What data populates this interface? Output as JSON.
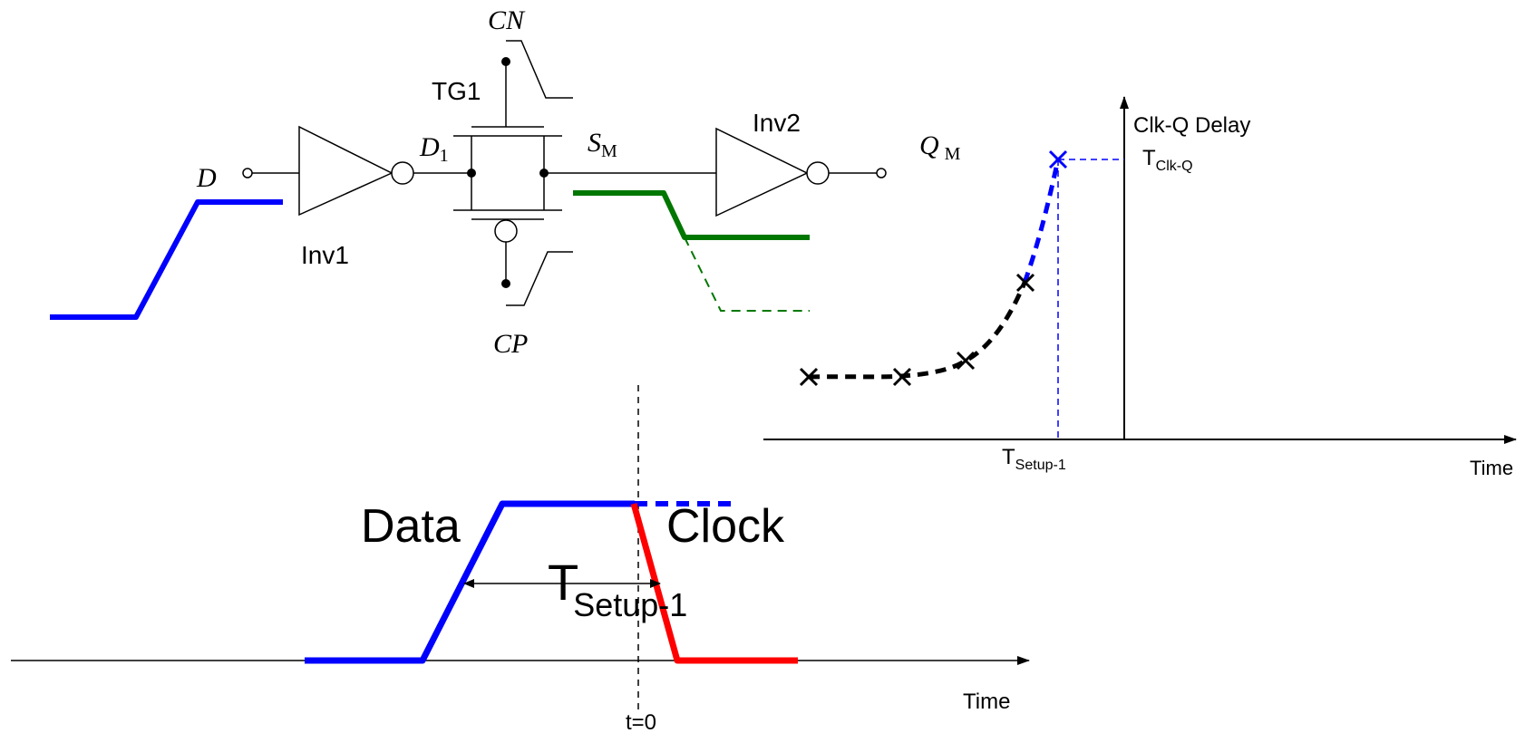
{
  "circuit": {
    "input_label": "D",
    "inv1_label": "Inv1",
    "d1_label_main": "D",
    "d1_label_sub": "1",
    "tg_label": "TG1",
    "cn_label": "CN",
    "cp_label": "CP",
    "sm_label_main": "S",
    "sm_label_sub": "M",
    "inv2_label": "Inv2",
    "qm_label_main": "Q",
    "qm_label_sub": "M"
  },
  "timing": {
    "data_label": "Data",
    "clock_label": "Clock",
    "setup_main": "T",
    "setup_sub": "Setup-1",
    "time_label": "Time",
    "t0_label": "t=0"
  },
  "delay_plot": {
    "ylabel": "Clk-Q Delay",
    "tclkq_main": "T",
    "tclkq_sub": "Clk-Q",
    "tsetup_main": "T",
    "tsetup_sub": "Setup-1",
    "xlabel": "Time"
  },
  "colors": {
    "data": "#0000ff",
    "clock": "#ff0000",
    "node": "#007700",
    "black": "#000000"
  }
}
